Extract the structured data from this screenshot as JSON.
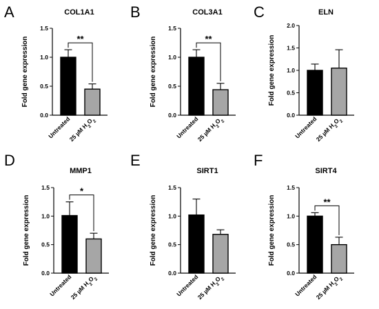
{
  "chart_data": [
    {
      "panel": "A",
      "type": "bar",
      "title": "COL1A1",
      "ylabel": "Fold gene expression",
      "ylim": [
        0,
        1.5
      ],
      "yticks": [
        "0.0",
        "0.5",
        "1.0",
        "1.5"
      ],
      "categories": [
        "Untreated",
        "25 µM H2O2"
      ],
      "values": [
        1.0,
        0.45
      ],
      "errors": [
        0.13,
        0.09
      ],
      "bar_colors": [
        "#000000",
        "#a6a6a6"
      ],
      "significance": "**"
    },
    {
      "panel": "B",
      "type": "bar",
      "title": "COL3A1",
      "ylabel": "Fold gene expression",
      "ylim": [
        0,
        1.5
      ],
      "yticks": [
        "0.0",
        "0.5",
        "1.0",
        "1.5"
      ],
      "categories": [
        "Untreated",
        "25 µM H2O2"
      ],
      "values": [
        1.0,
        0.44
      ],
      "errors": [
        0.13,
        0.11
      ],
      "bar_colors": [
        "#000000",
        "#a6a6a6"
      ],
      "significance": "**"
    },
    {
      "panel": "C",
      "type": "bar",
      "title": "ELN",
      "ylabel": "Fold gene expression",
      "ylim": [
        0,
        2.0
      ],
      "yticks": [
        "0.0",
        "0.5",
        "1.0",
        "1.5",
        "2.0"
      ],
      "categories": [
        "Untreated",
        "25 µM H2O2"
      ],
      "values": [
        1.0,
        1.05
      ],
      "errors": [
        0.14,
        0.41
      ],
      "bar_colors": [
        "#000000",
        "#a6a6a6"
      ],
      "significance": ""
    },
    {
      "panel": "D",
      "type": "bar",
      "title": "MMP1",
      "ylabel": "Fold gene expression",
      "ylim": [
        0,
        1.5
      ],
      "yticks": [
        "0.0",
        "0.5",
        "1.0",
        "1.5"
      ],
      "categories": [
        "Untreated",
        "25 µM H2O2"
      ],
      "values": [
        1.01,
        0.6
      ],
      "errors": [
        0.24,
        0.1
      ],
      "bar_colors": [
        "#000000",
        "#a6a6a6"
      ],
      "significance": "*"
    },
    {
      "panel": "E",
      "type": "bar",
      "title": "SIRT1",
      "ylabel": "Fold gene expression",
      "ylim": [
        0,
        1.5
      ],
      "yticks": [
        "0.0",
        "0.5",
        "1.0",
        "1.5"
      ],
      "categories": [
        "Untreated",
        "25 µM H2O2"
      ],
      "values": [
        1.02,
        0.68
      ],
      "errors": [
        0.28,
        0.08
      ],
      "bar_colors": [
        "#000000",
        "#a6a6a6"
      ],
      "significance": ""
    },
    {
      "panel": "F",
      "type": "bar",
      "title": "SIRT4",
      "ylabel": "Fold gene expression",
      "ylim": [
        0,
        1.5
      ],
      "yticks": [
        "0.0",
        "0.5",
        "1.0",
        "1.5"
      ],
      "categories": [
        "Untreated",
        "25 µM H2O2"
      ],
      "values": [
        1.0,
        0.5
      ],
      "errors": [
        0.06,
        0.13
      ],
      "bar_colors": [
        "#000000",
        "#a6a6a6"
      ],
      "significance": "**"
    }
  ]
}
